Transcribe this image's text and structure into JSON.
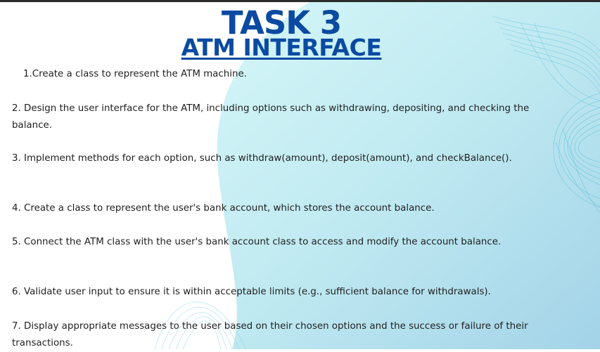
{
  "title": "TASK 3",
  "subtitle": "ATM INTERFACE",
  "tasks": [
    "1.Create a class to represent the ATM machine.",
    "2. Design the user interface for the ATM, including options such as withdrawing, depositing, and checking the balance.",
    "3. Implement methods for each option, such as withdraw(amount), deposit(amount), and checkBalance().",
    "4. Create a class to represent the user's bank account, which stores the account balance.",
    "5. Connect the ATM class with the user's bank account class to access and modify the account balance.",
    "6. Validate user input to ensure it is within acceptable limits (e.g., sufficient balance for withdrawals).",
    "7. Display appropriate messages to the user based on their chosen options and the success or failure of their transactions."
  ],
  "colors": {
    "title": "#0b4aa1",
    "text": "#1f1f1f",
    "wave_start": "#c9f4f7",
    "wave_end": "#a9d6ea",
    "mesh": "#6cc6dc"
  }
}
